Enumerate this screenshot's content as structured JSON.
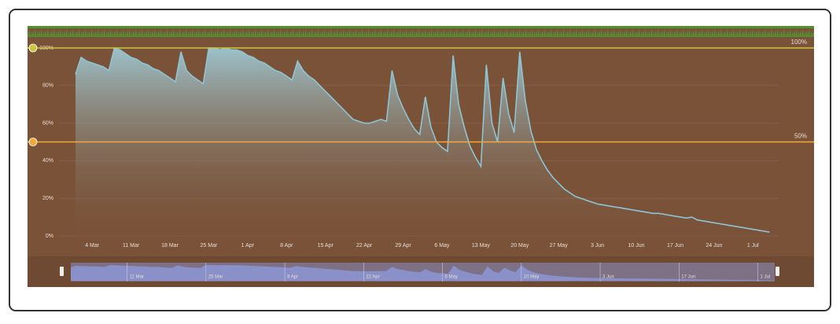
{
  "chart_data": {
    "type": "line",
    "x": [
      "1 Mar",
      "2 Mar",
      "3 Mar",
      "4 Mar",
      "5 Mar",
      "6 Mar",
      "7 Mar",
      "8 Mar",
      "9 Mar",
      "10 Mar",
      "11 Mar",
      "12 Mar",
      "13 Mar",
      "14 Mar",
      "15 Mar",
      "16 Mar",
      "17 Mar",
      "18 Mar",
      "19 Mar",
      "20 Mar",
      "21 Mar",
      "22 Mar",
      "23 Mar",
      "24 Mar",
      "25 Mar",
      "26 Mar",
      "27 Mar",
      "28 Mar",
      "29 Mar",
      "30 Mar",
      "31 Mar",
      "1 Apr",
      "2 Apr",
      "3 Apr",
      "4 Apr",
      "5 Apr",
      "6 Apr",
      "7 Apr",
      "8 Apr",
      "9 Apr",
      "10 Apr",
      "11 Apr",
      "12 Apr",
      "13 Apr",
      "14 Apr",
      "15 Apr",
      "16 Apr",
      "17 Apr",
      "18 Apr",
      "19 Apr",
      "20 Apr",
      "21 Apr",
      "22 Apr",
      "23 Apr",
      "24 Apr",
      "25 Apr",
      "26 Apr",
      "27 Apr",
      "28 Apr",
      "29 Apr",
      "30 Apr",
      "1 May",
      "2 May",
      "3 May",
      "4 May",
      "5 May",
      "6 May",
      "7 May",
      "8 May",
      "9 May",
      "10 May",
      "11 May",
      "12 May",
      "13 May",
      "14 May",
      "15 May",
      "16 May",
      "17 May",
      "18 May",
      "19 May",
      "20 May",
      "21 May",
      "22 May",
      "23 May",
      "24 May",
      "25 May",
      "26 May",
      "27 May",
      "28 May",
      "29 May",
      "30 May",
      "31 May",
      "1 Jun",
      "2 Jun",
      "3 Jun",
      "4 Jun",
      "5 Jun",
      "6 Jun",
      "7 Jun",
      "8 Jun",
      "9 Jun",
      "10 Jun",
      "11 Jun",
      "12 Jun",
      "13 Jun",
      "14 Jun",
      "15 Jun",
      "16 Jun",
      "17 Jun",
      "18 Jun",
      "19 Jun",
      "20 Jun",
      "21 Jun",
      "22 Jun",
      "23 Jun",
      "24 Jun",
      "25 Jun",
      "26 Jun",
      "27 Jun",
      "28 Jun",
      "29 Jun",
      "30 Jun",
      "1 Jul",
      "2 Jul",
      "3 Jul",
      "4 Jul"
    ],
    "series": [
      {
        "color": "#8ec5d6",
        "values": [
          86,
          95,
          93,
          92,
          91,
          90,
          88,
          100,
          99,
          97,
          95,
          94,
          92,
          91,
          89,
          88,
          86,
          84,
          82,
          98,
          88,
          85,
          83,
          81,
          100,
          100,
          99,
          100,
          99,
          99,
          98,
          96,
          95,
          93,
          92,
          90,
          88,
          87,
          85,
          83,
          93,
          88,
          85,
          83,
          80,
          77,
          74,
          71,
          68,
          65,
          62,
          61,
          60,
          60,
          61,
          62,
          61,
          88,
          75,
          68,
          62,
          57,
          54,
          74,
          58,
          50,
          47,
          45,
          96,
          70,
          58,
          48,
          42,
          37,
          91,
          60,
          50,
          84,
          65,
          55,
          98,
          72,
          56,
          46,
          40,
          35,
          31,
          28,
          25,
          23,
          21,
          20,
          19,
          18,
          17,
          16.5,
          16,
          15.5,
          15,
          14.5,
          14,
          13.5,
          13,
          12.5,
          12,
          12,
          11.5,
          11,
          10.5,
          10,
          9.5,
          10,
          8.5,
          8,
          7.5,
          7,
          6.5,
          6,
          5.5,
          5,
          4.5,
          4,
          3.5,
          3,
          2.5,
          2
        ]
      }
    ],
    "xticks": [
      "4 Mar",
      "11 Mar",
      "18 Mar",
      "25 Mar",
      "1 Apr",
      "8 Apr",
      "15 Apr",
      "22 Apr",
      "29 Apr",
      "6 May",
      "13 May",
      "20 May",
      "27 May",
      "3 Jun",
      "10 Jun",
      "17 Jun",
      "24 Jun",
      "1 Jul"
    ],
    "ylim": [
      0,
      100
    ],
    "yticks": [
      {
        "value": 0,
        "label": "0%"
      },
      {
        "value": 20,
        "label": "20%"
      },
      {
        "value": 40,
        "label": "40%"
      },
      {
        "value": 60,
        "label": "60%"
      },
      {
        "value": 80,
        "label": "80%"
      },
      {
        "value": 100,
        "label": "100%"
      }
    ],
    "grid": true,
    "thresholds": [
      {
        "value": 100,
        "label": "100%",
        "color": "#c9c83c"
      },
      {
        "value": 50,
        "label": "50%",
        "color": "#f2a93b"
      }
    ],
    "navigator_ticks": [
      "11 Mar",
      "25 Mar",
      "8 Apr",
      "22 Apr",
      "6 May",
      "20 May",
      "3 Jun",
      "17 Jun",
      "1 Jul"
    ]
  }
}
